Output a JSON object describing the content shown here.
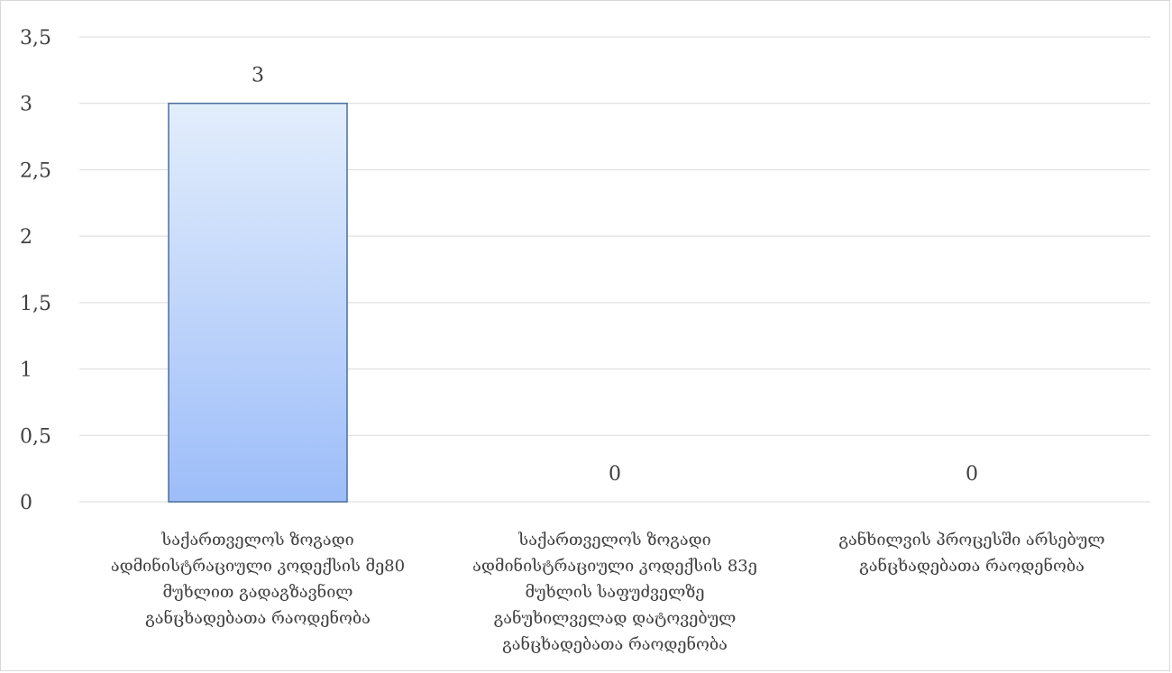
{
  "chart_data": {
    "type": "bar",
    "categories": [
      [
        "საქართველოს ზოგადი",
        "ადმინისტრაციული კოდექსის მე80",
        "მუხლით გადაგზავნილ",
        "განცხადებათა რაოდენობა"
      ],
      [
        "საქართველოს ზოგადი",
        "ადმინისტრაციული კოდექსის 83ე",
        "მუხლის საფუძველზე",
        "განუხილველად დატოვებულ",
        "განცხადებათა რაოდენობა"
      ],
      [
        "განხილვის პროცესში არსებულ",
        "განცხადებათა რაოდენობა"
      ]
    ],
    "values": [
      3,
      0,
      0
    ],
    "data_labels": [
      "3",
      "0",
      "0"
    ],
    "ylim": [
      0,
      3.5
    ],
    "y_ticks": [
      "0",
      "0,5",
      "1",
      "1,5",
      "2",
      "2,5",
      "3",
      "3,5"
    ],
    "y_tick_values": [
      0,
      0.5,
      1,
      1.5,
      2,
      2.5,
      3,
      3.5
    ],
    "grid": true,
    "legend": "none",
    "colors": {
      "bar_top": "#e3eefc",
      "bar_bottom": "#9dbdf9",
      "bar_border": "#4a6e9e",
      "grid": "#d9d9d9",
      "text": "#404040"
    }
  }
}
